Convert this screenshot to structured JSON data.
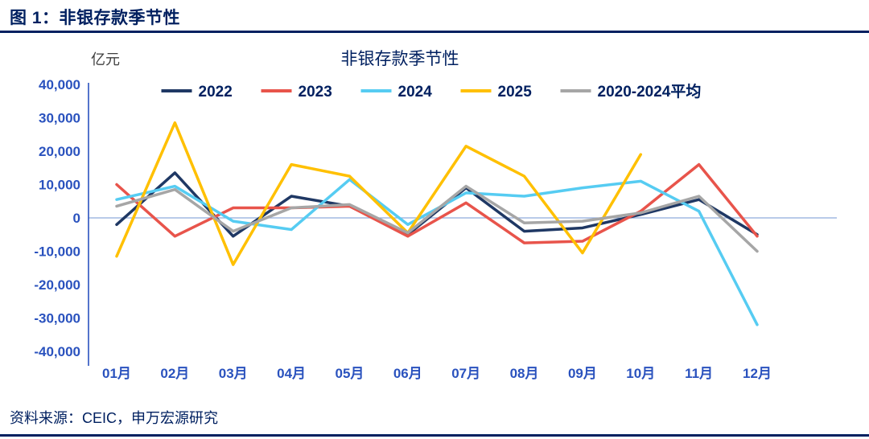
{
  "page": {
    "figure_label": "图 1：非银存款季节性",
    "source": "资料来源：CEIC，申万宏源研究"
  },
  "chart_data": {
    "type": "line",
    "title": "非银存款季节性",
    "unit_label": "亿元",
    "legend_position": "top",
    "grid": false,
    "categories": [
      "01月",
      "02月",
      "03月",
      "04月",
      "05月",
      "06月",
      "07月",
      "08月",
      "09月",
      "10月",
      "11月",
      "12月"
    ],
    "ylim": [
      -40000,
      40000
    ],
    "ytick_step": 10000,
    "title_color": "#002060",
    "tick_color": "#2A52BE",
    "axis_color": "#2A52BE",
    "zero_line_color": "#8FAADC",
    "series": [
      {
        "name": "2022",
        "color": "#1F3864",
        "values": [
          -2000,
          13500,
          -5500,
          6500,
          3500,
          -5000,
          9000,
          -4000,
          -3000,
          1000,
          5500,
          -5000
        ]
      },
      {
        "name": "2023",
        "color": "#E8544B",
        "values": [
          10000,
          -5500,
          3000,
          3000,
          3500,
          -5500,
          4500,
          -7500,
          -7000,
          2000,
          16000,
          -5500
        ]
      },
      {
        "name": "2024",
        "color": "#56CCF2",
        "values": [
          5500,
          9500,
          -1000,
          -3500,
          11500,
          -2000,
          7500,
          6500,
          9000,
          11000,
          2000,
          -32000
        ]
      },
      {
        "name": "2025",
        "color": "#FFC000",
        "values": [
          -11500,
          28500,
          -14000,
          16000,
          12500,
          -4500,
          21500,
          12500,
          -10500,
          19000
        ]
      },
      {
        "name": "2020-2024平均",
        "color": "#A6A6A6",
        "values": [
          3500,
          8500,
          -4000,
          3000,
          4000,
          -4500,
          9500,
          -1500,
          -1000,
          1500,
          6500,
          -10000
        ]
      }
    ]
  }
}
